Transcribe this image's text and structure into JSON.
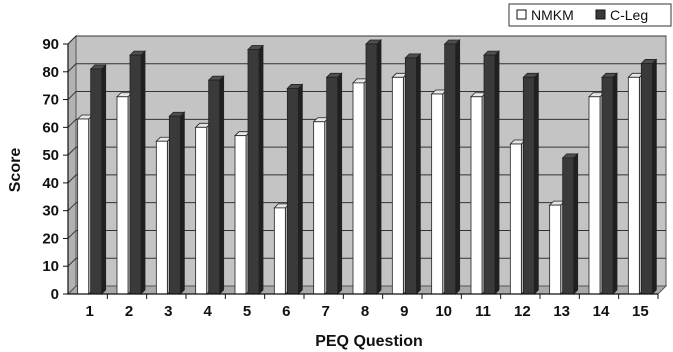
{
  "chart_data": {
    "type": "bar",
    "title": "",
    "xlabel": "PEQ Question",
    "ylabel": "Score",
    "ylim": [
      0,
      90
    ],
    "yticks": [
      0,
      10,
      20,
      30,
      40,
      50,
      60,
      70,
      80,
      90
    ],
    "grid": true,
    "legend_position": "top-right",
    "categories": [
      "1",
      "2",
      "3",
      "4",
      "5",
      "6",
      "7",
      "8",
      "9",
      "10",
      "11",
      "12",
      "13",
      "14",
      "15"
    ],
    "series": [
      {
        "name": "NMKM",
        "color": "#ffffff",
        "values": [
          63,
          71,
          55,
          60,
          57,
          31,
          62,
          76,
          78,
          72,
          71,
          54,
          32,
          71,
          78
        ]
      },
      {
        "name": "C-Leg",
        "color": "#3a3a3a",
        "values": [
          81,
          86,
          64,
          77,
          88,
          74,
          78,
          90,
          85,
          90,
          86,
          78,
          49,
          78,
          83
        ]
      }
    ]
  }
}
